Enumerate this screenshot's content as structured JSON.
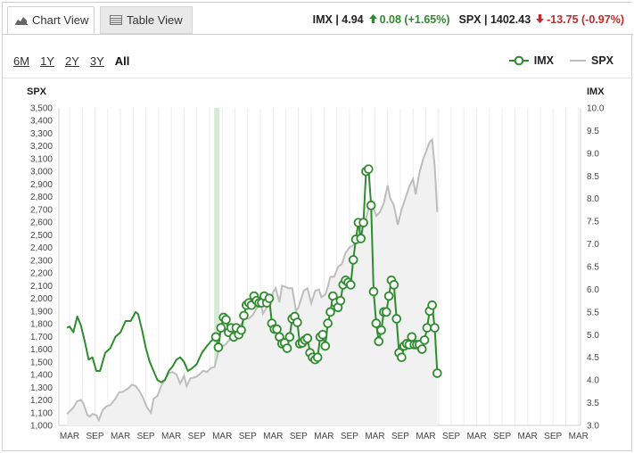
{
  "tabs": [
    {
      "label": "Chart View",
      "icon": "area-chart-icon",
      "active": true
    },
    {
      "label": "Table View",
      "icon": "table-icon",
      "active": false
    }
  ],
  "quote": {
    "imx_label": "IMX | 4.94",
    "imx_change": "0.08 (+1.65%)",
    "imx_direction": "up",
    "spx_label": "SPX | 1402.43",
    "spx_change": "-13.75 (-0.97%)",
    "spx_direction": "down",
    "up_color": "#2e8b2e",
    "down_color": "#c62828"
  },
  "ranges": [
    {
      "label": "6M",
      "selected": false
    },
    {
      "label": "1Y",
      "selected": false
    },
    {
      "label": "2Y",
      "selected": false
    },
    {
      "label": "3Y",
      "selected": false
    },
    {
      "label": "All",
      "selected": true
    }
  ],
  "legend": [
    {
      "label": "IMX",
      "color": "#2e8b2e",
      "marker": "circle"
    },
    {
      "label": "SPX",
      "color": "#bdbdbd",
      "marker": "line"
    }
  ],
  "chart_data": {
    "type": "line",
    "left_axis": {
      "title": "SPX",
      "min": 1000,
      "max": 3500,
      "step": 100,
      "ticks": [
        "1,000",
        "1,100",
        "1,200",
        "1,300",
        "1,400",
        "1,500",
        "1,600",
        "1,700",
        "1,800",
        "1,900",
        "2,000",
        "2,100",
        "2,200",
        "2,300",
        "2,400",
        "2,500",
        "2,600",
        "2,700",
        "2,800",
        "2,900",
        "3,000",
        "3,100",
        "3,200",
        "3,300",
        "3,400",
        "3,500"
      ]
    },
    "right_axis": {
      "title": "IMX",
      "min": 3.0,
      "max": 10.0,
      "step": 0.5,
      "ticks": [
        "3.0",
        "3.5",
        "4.0",
        "4.5",
        "5.0",
        "5.5",
        "6.0",
        "6.5",
        "7.0",
        "7.5",
        "8.0",
        "8.5",
        "9.0",
        "9.5",
        "10.0"
      ]
    },
    "x_labels": [
      "MAR",
      "SEP",
      "MAR",
      "SEP",
      "MAR",
      "SEP",
      "MAR",
      "SEP",
      "MAR",
      "SEP",
      "MAR",
      "SEP",
      "MAR",
      "SEP",
      "MAR",
      "SEP",
      "MAR",
      "SEP",
      "MAR",
      "SEP",
      "MAR"
    ],
    "x_count": 21,
    "highlight_band": {
      "x_start": 5.75,
      "x_end": 5.95,
      "color": "#d7ead7"
    },
    "grid": "vertical",
    "series": [
      {
        "name": "IMX",
        "axis": "right",
        "color": "#2e8b2e",
        "points": [
          [
            -0.1,
            5.15
          ],
          [
            0.0,
            5.18
          ],
          [
            0.15,
            5.05
          ],
          [
            0.3,
            5.4
          ],
          [
            0.45,
            5.2
          ],
          [
            0.6,
            4.85
          ],
          [
            0.75,
            4.45
          ],
          [
            0.9,
            4.5
          ],
          [
            1.05,
            4.2
          ],
          [
            1.2,
            4.2
          ],
          [
            1.4,
            4.6
          ],
          [
            1.6,
            4.7
          ],
          [
            1.8,
            4.95
          ],
          [
            2.0,
            5.05
          ],
          [
            2.2,
            5.3
          ],
          [
            2.4,
            5.3
          ],
          [
            2.6,
            5.5
          ],
          [
            2.7,
            5.45
          ],
          [
            2.85,
            5.1
          ],
          [
            3.0,
            4.7
          ],
          [
            3.15,
            4.4
          ],
          [
            3.3,
            4.2
          ],
          [
            3.45,
            4.0
          ],
          [
            3.6,
            3.95
          ],
          [
            3.75,
            4.0
          ],
          [
            3.9,
            4.2
          ],
          [
            4.05,
            4.3
          ],
          [
            4.2,
            4.45
          ],
          [
            4.35,
            4.5
          ],
          [
            4.5,
            4.4
          ],
          [
            4.65,
            4.2
          ],
          [
            4.8,
            4.25
          ],
          [
            5.0,
            4.35
          ],
          [
            5.2,
            4.6
          ],
          [
            5.4,
            4.75
          ],
          [
            5.55,
            4.85
          ],
          [
            5.75,
            4.95
          ]
        ],
        "marker_points": [
          [
            5.75,
            4.95
          ],
          [
            5.85,
            4.72
          ],
          [
            5.95,
            5.15
          ],
          [
            6.05,
            5.38
          ],
          [
            6.15,
            5.33
          ],
          [
            6.25,
            5.05
          ],
          [
            6.35,
            5.15
          ],
          [
            6.45,
            4.95
          ],
          [
            6.55,
            5.15
          ],
          [
            6.65,
            5.0
          ],
          [
            6.75,
            5.1
          ],
          [
            6.85,
            5.42
          ],
          [
            6.95,
            5.65
          ],
          [
            7.05,
            5.7
          ],
          [
            7.15,
            5.65
          ],
          [
            7.25,
            5.85
          ],
          [
            7.35,
            5.75
          ],
          [
            7.45,
            5.7
          ],
          [
            7.55,
            5.7
          ],
          [
            7.65,
            5.85
          ],
          [
            7.75,
            5.7
          ],
          [
            7.85,
            5.8
          ],
          [
            7.95,
            5.25
          ],
          [
            8.05,
            5.12
          ],
          [
            8.15,
            5.12
          ],
          [
            8.25,
            4.95
          ],
          [
            8.35,
            4.8
          ],
          [
            8.45,
            4.82
          ],
          [
            8.55,
            4.7
          ],
          [
            8.65,
            4.95
          ],
          [
            8.75,
            5.35
          ],
          [
            8.85,
            5.4
          ],
          [
            8.95,
            5.27
          ],
          [
            9.05,
            4.8
          ],
          [
            9.15,
            4.82
          ],
          [
            9.25,
            4.88
          ],
          [
            9.35,
            4.92
          ],
          [
            9.45,
            4.6
          ],
          [
            9.55,
            4.5
          ],
          [
            9.65,
            4.45
          ],
          [
            9.75,
            4.5
          ],
          [
            9.85,
            4.95
          ],
          [
            9.95,
            5.0
          ],
          [
            10.05,
            4.75
          ],
          [
            10.15,
            5.25
          ],
          [
            10.25,
            5.5
          ],
          [
            10.35,
            5.85
          ],
          [
            10.45,
            5.7
          ],
          [
            10.55,
            5.6
          ],
          [
            10.65,
            5.75
          ],
          [
            10.75,
            6.1
          ],
          [
            10.85,
            6.2
          ],
          [
            10.95,
            6.15
          ],
          [
            11.05,
            6.1
          ],
          [
            11.15,
            6.65
          ],
          [
            11.25,
            7.1
          ],
          [
            11.35,
            7.47
          ],
          [
            11.45,
            7.12
          ],
          [
            11.55,
            7.47
          ],
          [
            11.65,
            8.6
          ],
          [
            11.75,
            8.65
          ],
          [
            11.85,
            7.85
          ],
          [
            11.95,
            5.95
          ],
          [
            12.05,
            5.25
          ],
          [
            12.15,
            4.85
          ],
          [
            12.25,
            5.1
          ],
          [
            12.35,
            5.5
          ],
          [
            12.45,
            5.5
          ],
          [
            12.55,
            5.85
          ],
          [
            12.65,
            6.2
          ],
          [
            12.75,
            6.1
          ],
          [
            12.85,
            5.35
          ],
          [
            12.95,
            4.6
          ],
          [
            13.05,
            4.5
          ],
          [
            13.15,
            4.75
          ],
          [
            13.25,
            4.8
          ],
          [
            13.35,
            4.78
          ],
          [
            13.45,
            4.95
          ],
          [
            13.55,
            4.78
          ],
          [
            13.65,
            4.78
          ],
          [
            13.75,
            4.78
          ],
          [
            13.85,
            4.68
          ],
          [
            13.95,
            4.88
          ],
          [
            14.05,
            5.15
          ],
          [
            14.15,
            5.52
          ],
          [
            14.25,
            5.65
          ],
          [
            14.35,
            5.15
          ],
          [
            14.45,
            4.15
          ]
        ]
      },
      {
        "name": "SPX",
        "axis": "left",
        "color": "#bdbdbd",
        "points": [
          [
            -0.1,
            1090
          ],
          [
            0.0,
            1110
          ],
          [
            0.15,
            1140
          ],
          [
            0.3,
            1190
          ],
          [
            0.45,
            1200
          ],
          [
            0.55,
            1170
          ],
          [
            0.7,
            1080
          ],
          [
            0.8,
            1070
          ],
          [
            0.9,
            1090
          ],
          [
            1.05,
            1080
          ],
          [
            1.15,
            1040
          ],
          [
            1.3,
            1120
          ],
          [
            1.45,
            1150
          ],
          [
            1.6,
            1160
          ],
          [
            1.8,
            1210
          ],
          [
            1.95,
            1260
          ],
          [
            2.1,
            1265
          ],
          [
            2.3,
            1290
          ],
          [
            2.45,
            1320
          ],
          [
            2.6,
            1310
          ],
          [
            2.75,
            1270
          ],
          [
            2.9,
            1210
          ],
          [
            3.05,
            1140
          ],
          [
            3.2,
            1100
          ],
          [
            3.3,
            1210
          ],
          [
            3.45,
            1230
          ],
          [
            3.6,
            1310
          ],
          [
            3.75,
            1360
          ],
          [
            3.9,
            1410
          ],
          [
            4.05,
            1420
          ],
          [
            4.2,
            1400
          ],
          [
            4.35,
            1330
          ],
          [
            4.5,
            1390
          ],
          [
            4.6,
            1310
          ],
          [
            4.75,
            1370
          ],
          [
            4.95,
            1380
          ],
          [
            5.1,
            1400
          ],
          [
            5.25,
            1430
          ],
          [
            5.4,
            1420
          ],
          [
            5.55,
            1450
          ],
          [
            5.7,
            1460
          ],
          [
            5.85,
            1580
          ],
          [
            6.0,
            1620
          ],
          [
            6.15,
            1640
          ],
          [
            6.3,
            1680
          ],
          [
            6.45,
            1690
          ],
          [
            6.6,
            1760
          ],
          [
            6.75,
            1800
          ],
          [
            6.9,
            1850
          ],
          [
            7.05,
            1840
          ],
          [
            7.2,
            1870
          ],
          [
            7.35,
            1920
          ],
          [
            7.5,
            1970
          ],
          [
            7.6,
            1880
          ],
          [
            7.75,
            1930
          ],
          [
            7.9,
            1950
          ],
          [
            8.0,
            2050
          ],
          [
            8.1,
            2080
          ],
          [
            8.25,
            1970
          ],
          [
            8.35,
            2100
          ],
          [
            8.5,
            2090
          ],
          [
            8.6,
            2080
          ],
          [
            8.75,
            2080
          ],
          [
            8.9,
            1900
          ],
          [
            9.0,
            1930
          ],
          [
            9.2,
            2060
          ],
          [
            9.35,
            2080
          ],
          [
            9.5,
            1960
          ],
          [
            9.65,
            2060
          ],
          [
            9.8,
            2070
          ],
          [
            9.9,
            2010
          ],
          [
            10.05,
            2030
          ],
          [
            10.15,
            2090
          ],
          [
            10.25,
            2170
          ],
          [
            10.4,
            2170
          ],
          [
            10.55,
            2250
          ],
          [
            10.7,
            2270
          ],
          [
            10.85,
            2360
          ],
          [
            11.0,
            2400
          ],
          [
            11.15,
            2420
          ],
          [
            11.3,
            2460
          ],
          [
            11.45,
            2570
          ],
          [
            11.6,
            2590
          ],
          [
            11.75,
            2710
          ],
          [
            11.9,
            2740
          ],
          [
            12.05,
            2650
          ],
          [
            12.2,
            2680
          ],
          [
            12.35,
            2750
          ],
          [
            12.5,
            2890
          ],
          [
            12.6,
            2790
          ],
          [
            12.75,
            2730
          ],
          [
            12.9,
            2580
          ],
          [
            13.05,
            2700
          ],
          [
            13.2,
            2790
          ],
          [
            13.35,
            2880
          ],
          [
            13.5,
            2940
          ],
          [
            13.6,
            2820
          ],
          [
            13.75,
            2990
          ],
          [
            13.9,
            3100
          ],
          [
            14.0,
            3150
          ],
          [
            14.15,
            3230
          ],
          [
            14.25,
            3250
          ],
          [
            14.35,
            3040
          ],
          [
            14.45,
            2680
          ]
        ]
      }
    ]
  }
}
